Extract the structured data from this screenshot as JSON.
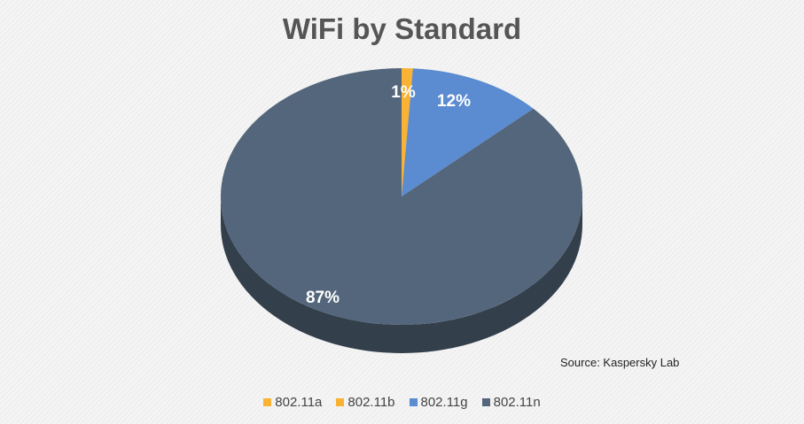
{
  "chart_data": {
    "type": "pie",
    "title": "WiFi by Standard",
    "categories": [
      "802.11a",
      "802.11b",
      "802.11g",
      "802.11n"
    ],
    "values": [
      0,
      1,
      12,
      87
    ],
    "labels": [
      "",
      "1%",
      "12%",
      "87%"
    ],
    "colors": [
      "#F9B233",
      "#F9B233",
      "#5B8BD0",
      "#54667B"
    ],
    "legend": "bottom",
    "style": "3d",
    "annotation": "Source: Kaspersky Lab"
  }
}
